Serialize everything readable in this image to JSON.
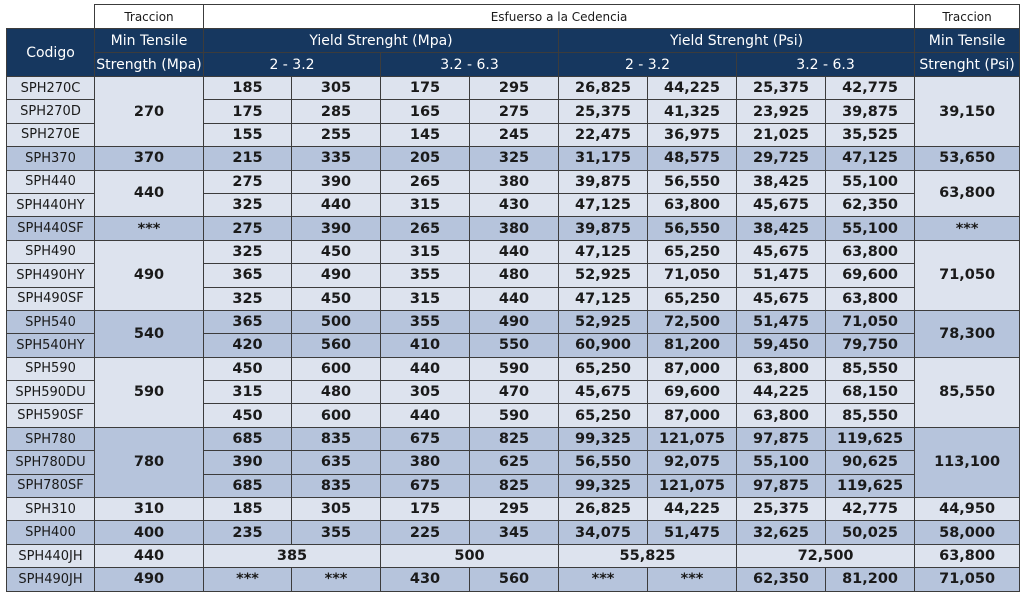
{
  "header": {
    "top": {
      "left": "Traccion",
      "middle": "Esfuerso a la Cedencia",
      "right": "Traccion"
    },
    "codigo": "Codigo",
    "min_tensile_mpa": {
      "line1": "Min Tensile",
      "line2": "Strength (Mpa)"
    },
    "yield_mpa": "Yield Strenght (Mpa)",
    "yield_psi": "Yield Strenght (Psi)",
    "min_tensile_psi": {
      "line1": "Min Tensile",
      "line2": "Strenght (Psi)"
    },
    "range_a": "2 - 3.2",
    "range_b": "3.2 - 6.3"
  },
  "colors": {
    "header_bg": "#16375f",
    "row_light": "#dde3ee",
    "row_dark": "#b6c4dc"
  },
  "rows": [
    {
      "code": "SPH270C",
      "tensile": "270",
      "m1": "185",
      "m2": "305",
      "m3": "175",
      "m4": "295",
      "p1": "26,825",
      "p2": "44,225",
      "p3": "25,375",
      "p4": "42,775",
      "tpsi": "39,150"
    },
    {
      "code": "SPH270D",
      "m1": "175",
      "m2": "285",
      "m3": "165",
      "m4": "275",
      "p1": "25,375",
      "p2": "41,325",
      "p3": "23,925",
      "p4": "39,875"
    },
    {
      "code": "SPH270E",
      "m1": "155",
      "m2": "255",
      "m3": "145",
      "m4": "245",
      "p1": "22,475",
      "p2": "36,975",
      "p3": "21,025",
      "p4": "35,525"
    },
    {
      "code": "SPH370",
      "tensile": "370",
      "m1": "215",
      "m2": "335",
      "m3": "205",
      "m4": "325",
      "p1": "31,175",
      "p2": "48,575",
      "p3": "29,725",
      "p4": "47,125",
      "tpsi": "53,650"
    },
    {
      "code": "SPH440",
      "tensile": "440",
      "m1": "275",
      "m2": "390",
      "m3": "265",
      "m4": "380",
      "p1": "39,875",
      "p2": "56,550",
      "p3": "38,425",
      "p4": "55,100",
      "tpsi": "63,800"
    },
    {
      "code": "SPH440HY",
      "m1": "325",
      "m2": "440",
      "m3": "315",
      "m4": "430",
      "p1": "47,125",
      "p2": "63,800",
      "p3": "45,675",
      "p4": "62,350"
    },
    {
      "code": "SPH440SF",
      "tensile": "***",
      "m1": "275",
      "m2": "390",
      "m3": "265",
      "m4": "380",
      "p1": "39,875",
      "p2": "56,550",
      "p3": "38,425",
      "p4": "55,100",
      "tpsi": "***"
    },
    {
      "code": "SPH490",
      "tensile": "490",
      "m1": "325",
      "m2": "450",
      "m3": "315",
      "m4": "440",
      "p1": "47,125",
      "p2": "65,250",
      "p3": "45,675",
      "p4": "63,800",
      "tpsi": "71,050"
    },
    {
      "code": "SPH490HY",
      "m1": "365",
      "m2": "490",
      "m3": "355",
      "m4": "480",
      "p1": "52,925",
      "p2": "71,050",
      "p3": "51,475",
      "p4": "69,600"
    },
    {
      "code": "SPH490SF",
      "m1": "325",
      "m2": "450",
      "m3": "315",
      "m4": "440",
      "p1": "47,125",
      "p2": "65,250",
      "p3": "45,675",
      "p4": "63,800"
    },
    {
      "code": "SPH540",
      "tensile": "540",
      "m1": "365",
      "m2": "500",
      "m3": "355",
      "m4": "490",
      "p1": "52,925",
      "p2": "72,500",
      "p3": "51,475",
      "p4": "71,050",
      "tpsi": "78,300"
    },
    {
      "code": "SPH540HY",
      "m1": "420",
      "m2": "560",
      "m3": "410",
      "m4": "550",
      "p1": "60,900",
      "p2": "81,200",
      "p3": "59,450",
      "p4": "79,750"
    },
    {
      "code": "SPH590",
      "tensile": "590",
      "m1": "450",
      "m2": "600",
      "m3": "440",
      "m4": "590",
      "p1": "65,250",
      "p2": "87,000",
      "p3": "63,800",
      "p4": "85,550",
      "tpsi": "85,550"
    },
    {
      "code": "SPH590DU",
      "m1": "315",
      "m2": "480",
      "m3": "305",
      "m4": "470",
      "p1": "45,675",
      "p2": "69,600",
      "p3": "44,225",
      "p4": "68,150"
    },
    {
      "code": "SPH590SF",
      "m1": "450",
      "m2": "600",
      "m3": "440",
      "m4": "590",
      "p1": "65,250",
      "p2": "87,000",
      "p3": "63,800",
      "p4": "85,550"
    },
    {
      "code": "SPH780",
      "tensile": "780",
      "m1": "685",
      "m2": "835",
      "m3": "675",
      "m4": "825",
      "p1": "99,325",
      "p2": "121,075",
      "p3": "97,875",
      "p4": "119,625",
      "tpsi": "113,100"
    },
    {
      "code": "SPH780DU",
      "m1": "390",
      "m2": "635",
      "m3": "380",
      "m4": "625",
      "p1": "56,550",
      "p2": "92,075",
      "p3": "55,100",
      "p4": "90,625"
    },
    {
      "code": "SPH780SF",
      "m1": "685",
      "m2": "835",
      "m3": "675",
      "m4": "825",
      "p1": "99,325",
      "p2": "121,075",
      "p3": "97,875",
      "p4": "119,625"
    },
    {
      "code": "SPH310",
      "tensile": "310",
      "m1": "185",
      "m2": "305",
      "m3": "175",
      "m4": "295",
      "p1": "26,825",
      "p2": "44,225",
      "p3": "25,375",
      "p4": "42,775",
      "tpsi": "44,950"
    },
    {
      "code": "SPH400",
      "tensile": "400",
      "m1": "235",
      "m2": "355",
      "m3": "225",
      "m4": "345",
      "p1": "34,075",
      "p2": "51,475",
      "p3": "32,625",
      "p4": "50,025",
      "tpsi": "58,000"
    },
    {
      "code": "SPH440JH",
      "tensile": "440",
      "ma": "385",
      "mb": "500",
      "pa": "55,825",
      "pb": "72,500",
      "tpsi": "63,800"
    },
    {
      "code": "SPH490JH",
      "tensile": "490",
      "m1": "***",
      "m2": "***",
      "m3": "430",
      "m4": "560",
      "p1": "***",
      "p2": "***",
      "p3": "62,350",
      "p4": "81,200",
      "tpsi": "71,050"
    }
  ]
}
